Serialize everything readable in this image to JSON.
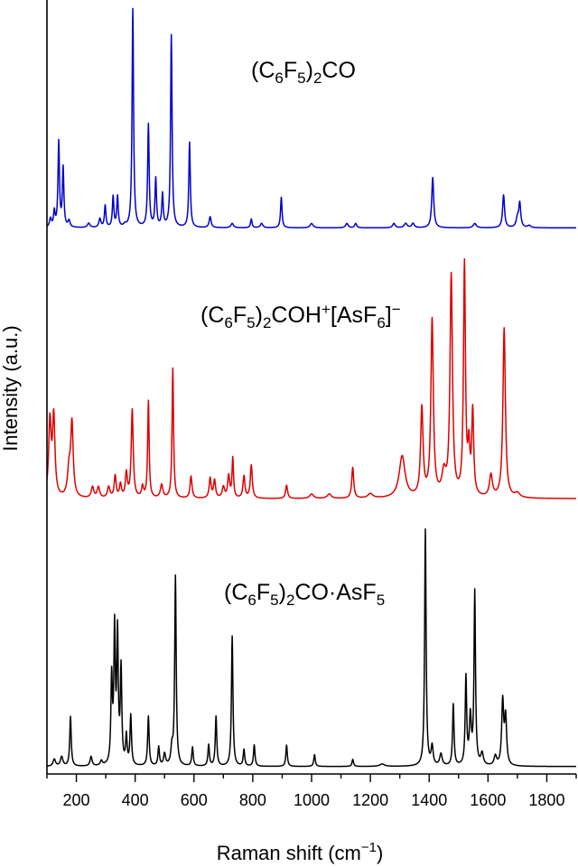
{
  "chart_data": {
    "type": "line",
    "xlabel": "Raman shift (cm⁻¹)",
    "ylabel": "Intensity (a.u.)",
    "xlim": [
      100,
      1900
    ],
    "x_ticks": [
      200,
      400,
      600,
      800,
      1000,
      1200,
      1400,
      1600,
      1800
    ],
    "y_ticks": "none",
    "grid": false,
    "legend": "none",
    "stacked_offset": true,
    "series": [
      {
        "label": "(C₆F₅)₂CO",
        "color": "#0000cc",
        "baseline": 0.04,
        "peaks": [
          [
            112,
            0.04,
            4
          ],
          [
            125,
            0.07,
            3
          ],
          [
            140,
            0.39,
            3
          ],
          [
            155,
            0.27,
            3
          ],
          [
            175,
            0.03,
            4
          ],
          [
            242,
            0.02,
            5
          ],
          [
            280,
            0.04,
            4
          ],
          [
            298,
            0.1,
            3
          ],
          [
            325,
            0.14,
            3
          ],
          [
            340,
            0.14,
            3
          ],
          [
            365,
            0.01,
            5
          ],
          [
            392,
            1.0,
            3
          ],
          [
            445,
            0.47,
            3
          ],
          [
            470,
            0.22,
            3
          ],
          [
            493,
            0.15,
            3
          ],
          [
            523,
            0.88,
            3
          ],
          [
            585,
            0.39,
            3
          ],
          [
            655,
            0.05,
            4
          ],
          [
            730,
            0.02,
            5
          ],
          [
            795,
            0.04,
            3
          ],
          [
            830,
            0.02,
            5
          ],
          [
            897,
            0.14,
            3
          ],
          [
            1000,
            0.02,
            6
          ],
          [
            1120,
            0.02,
            5
          ],
          [
            1150,
            0.02,
            4
          ],
          [
            1280,
            0.02,
            5
          ],
          [
            1320,
            0.02,
            6
          ],
          [
            1345,
            0.02,
            5
          ],
          [
            1412,
            0.23,
            4
          ],
          [
            1555,
            0.02,
            6
          ],
          [
            1653,
            0.15,
            4
          ],
          [
            1700,
            0.04,
            5
          ],
          [
            1708,
            0.11,
            4
          ],
          [
            1740,
            0.01,
            6
          ]
        ]
      },
      {
        "label": "(C₆F₅)₂COH⁺[AsF₆]⁻",
        "color": "#dd0000",
        "baseline": 0.04,
        "peaks": [
          [
            110,
            0.34,
            5
          ],
          [
            123,
            0.36,
            5
          ],
          [
            175,
            0.12,
            6
          ],
          [
            185,
            0.33,
            5
          ],
          [
            255,
            0.05,
            5
          ],
          [
            275,
            0.05,
            5
          ],
          [
            310,
            0.05,
            5
          ],
          [
            332,
            0.1,
            4
          ],
          [
            350,
            0.06,
            4
          ],
          [
            370,
            0.11,
            4
          ],
          [
            390,
            0.4,
            4
          ],
          [
            425,
            0.05,
            4
          ],
          [
            445,
            0.44,
            3
          ],
          [
            490,
            0.06,
            5
          ],
          [
            528,
            0.59,
            3
          ],
          [
            590,
            0.1,
            4
          ],
          [
            655,
            0.09,
            4
          ],
          [
            670,
            0.08,
            4
          ],
          [
            700,
            0.05,
            5
          ],
          [
            718,
            0.1,
            4
          ],
          [
            732,
            0.18,
            3
          ],
          [
            770,
            0.1,
            4
          ],
          [
            795,
            0.15,
            4
          ],
          [
            915,
            0.06,
            4
          ],
          [
            1000,
            0.02,
            8
          ],
          [
            1060,
            0.02,
            8
          ],
          [
            1140,
            0.14,
            4
          ],
          [
            1200,
            0.02,
            10
          ],
          [
            1308,
            0.19,
            12
          ],
          [
            1375,
            0.4,
            5
          ],
          [
            1410,
            0.8,
            5
          ],
          [
            1450,
            0.1,
            8
          ],
          [
            1475,
            1.0,
            5
          ],
          [
            1520,
            1.05,
            4
          ],
          [
            1535,
            0.2,
            4
          ],
          [
            1548,
            0.38,
            4
          ],
          [
            1610,
            0.1,
            6
          ],
          [
            1655,
            0.77,
            5
          ],
          [
            1700,
            0.02,
            10
          ]
        ]
      },
      {
        "label": "(C₆F₅)₂CO·AsF₅",
        "color": "#000000",
        "baseline": 0.02,
        "peaks": [
          [
            125,
            0.03,
            5
          ],
          [
            150,
            0.04,
            5
          ],
          [
            180,
            0.21,
            3
          ],
          [
            250,
            0.04,
            4
          ],
          [
            285,
            0.02,
            4
          ],
          [
            320,
            0.36,
            3
          ],
          [
            330,
            0.56,
            3
          ],
          [
            340,
            0.54,
            3
          ],
          [
            352,
            0.4,
            3
          ],
          [
            370,
            0.12,
            3
          ],
          [
            385,
            0.21,
            3
          ],
          [
            445,
            0.21,
            3
          ],
          [
            480,
            0.08,
            3
          ],
          [
            500,
            0.05,
            4
          ],
          [
            525,
            0.07,
            4
          ],
          [
            537,
            0.8,
            3
          ],
          [
            595,
            0.08,
            3
          ],
          [
            650,
            0.09,
            3
          ],
          [
            675,
            0.21,
            3
          ],
          [
            730,
            0.55,
            3
          ],
          [
            770,
            0.07,
            3
          ],
          [
            805,
            0.09,
            3
          ],
          [
            915,
            0.09,
            3
          ],
          [
            1010,
            0.05,
            3
          ],
          [
            1140,
            0.03,
            3
          ],
          [
            1240,
            0.01,
            10
          ],
          [
            1387,
            1.0,
            3
          ],
          [
            1410,
            0.08,
            4
          ],
          [
            1440,
            0.05,
            5
          ],
          [
            1482,
            0.26,
            3
          ],
          [
            1525,
            0.37,
            3
          ],
          [
            1540,
            0.2,
            4
          ],
          [
            1555,
            0.73,
            3
          ],
          [
            1580,
            0.05,
            5
          ],
          [
            1625,
            0.04,
            5
          ],
          [
            1650,
            0.27,
            4
          ],
          [
            1660,
            0.2,
            4
          ]
        ]
      }
    ]
  }
}
